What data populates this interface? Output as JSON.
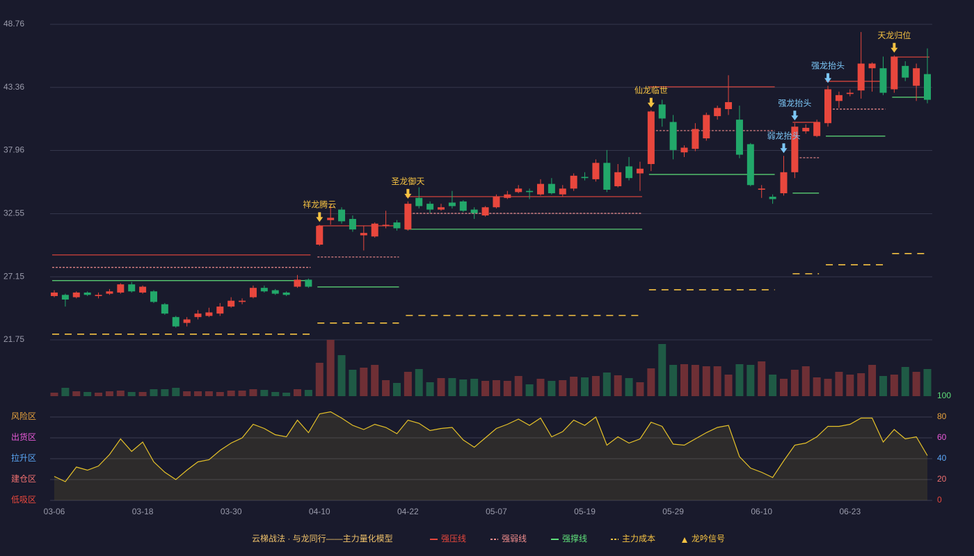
{
  "chart_data": {
    "type": "candlestick",
    "categories": [
      "03-06",
      null,
      null,
      null,
      null,
      null,
      null,
      null,
      "03-18",
      null,
      null,
      null,
      null,
      null,
      null,
      null,
      "03-30",
      null,
      null,
      null,
      null,
      null,
      null,
      null,
      "04-10",
      null,
      null,
      null,
      null,
      null,
      null,
      null,
      "04-22",
      null,
      null,
      null,
      null,
      null,
      null,
      null,
      "05-07",
      null,
      null,
      null,
      null,
      null,
      null,
      null,
      "05-19",
      null,
      null,
      null,
      null,
      null,
      null,
      null,
      "05-29",
      null,
      null,
      null,
      null,
      null,
      null,
      null,
      "06-10",
      null,
      null,
      null,
      null,
      null,
      null,
      null,
      "06-23",
      null,
      null,
      null,
      null,
      null,
      null,
      null
    ],
    "open": [
      25.5,
      25.6,
      25.4,
      25.8,
      25.5,
      25.7,
      25.8,
      26.5,
      25.8,
      25.9,
      24.8,
      23.7,
      23.2,
      23.7,
      23.8,
      24.0,
      24.6,
      25.0,
      25.4,
      26.2,
      26.0,
      25.8,
      26.3,
      26.9,
      29.9,
      32.0,
      32.9,
      32.1,
      30.7,
      30.6,
      31.5,
      31.8,
      31.2,
      33.9,
      33.4,
      32.9,
      33.5,
      33.6,
      32.9,
      32.4,
      33.1,
      33.9,
      34.4,
      34.5,
      34.2,
      35.1,
      34.2,
      34.7,
      35.7,
      35.5,
      36.9,
      34.9,
      36.6,
      36.0,
      36.8,
      41.9,
      40.4,
      37.8,
      38.1,
      39.0,
      40.9,
      41.5,
      40.6,
      38.5,
      34.6,
      34.0,
      34.3,
      36.1,
      39.6,
      39.2,
      40.3,
      42.2,
      42.8,
      43.1,
      45.0,
      45.0,
      43.2,
      45.2,
      43.5,
      44.5
    ],
    "close": [
      25.8,
      25.2,
      25.8,
      25.6,
      25.6,
      25.9,
      26.5,
      25.9,
      26.3,
      25.0,
      24.0,
      22.9,
      23.5,
      24.0,
      24.1,
      24.6,
      25.1,
      25.1,
      26.2,
      25.9,
      25.7,
      25.6,
      26.9,
      26.3,
      31.5,
      32.2,
      31.9,
      31.2,
      30.9,
      31.7,
      31.6,
      31.3,
      33.4,
      33.2,
      32.9,
      33.1,
      33.2,
      32.8,
      32.6,
      33.1,
      34.0,
      34.2,
      34.7,
      34.4,
      35.1,
      34.3,
      34.7,
      35.8,
      35.6,
      36.9,
      34.6,
      36.1,
      35.6,
      36.4,
      41.3,
      40.7,
      38.0,
      38.2,
      39.8,
      41.0,
      41.6,
      42.1,
      37.6,
      35.0,
      34.7,
      33.8,
      36.1,
      40.0,
      39.9,
      40.4,
      43.2,
      42.7,
      42.9,
      45.4,
      45.4,
      42.9,
      46.0,
      44.2,
      45.0,
      42.3
    ],
    "high": [
      26.0,
      25.7,
      25.9,
      25.9,
      25.8,
      26.1,
      26.6,
      26.7,
      26.4,
      26.0,
      24.9,
      23.8,
      23.7,
      24.3,
      24.5,
      24.9,
      25.4,
      25.3,
      26.4,
      26.4,
      26.1,
      25.9,
      27.3,
      27.0,
      31.6,
      33.2,
      33.1,
      32.4,
      31.5,
      31.8,
      32.8,
      32.0,
      33.6,
      34.8,
      33.6,
      33.4,
      34.5,
      33.7,
      33.1,
      33.2,
      34.2,
      34.5,
      35.0,
      34.7,
      35.5,
      35.6,
      35.0,
      36.0,
      36.1,
      37.2,
      38.0,
      36.8,
      37.4,
      37.0,
      41.4,
      42.3,
      41.0,
      38.4,
      40.3,
      41.2,
      41.8,
      44.4,
      41.8,
      38.6,
      35.0,
      34.2,
      37.5,
      40.3,
      40.2,
      40.6,
      43.5,
      43.0,
      43.2,
      48.1,
      45.5,
      46.0,
      46.1,
      45.6,
      45.4,
      46.7
    ],
    "low": [
      25.4,
      24.6,
      25.3,
      25.5,
      25.3,
      25.6,
      25.7,
      25.8,
      25.7,
      24.9,
      23.9,
      22.8,
      22.9,
      23.5,
      23.7,
      23.8,
      24.5,
      24.8,
      25.3,
      25.8,
      25.6,
      25.5,
      26.2,
      26.2,
      29.8,
      31.6,
      31.7,
      31.0,
      29.4,
      30.5,
      31.3,
      31.1,
      31.1,
      33.0,
      32.6,
      32.8,
      33.0,
      32.7,
      32.1,
      32.3,
      33.0,
      33.8,
      34.3,
      33.8,
      34.1,
      34.2,
      34.0,
      34.5,
      35.4,
      35.3,
      34.4,
      34.8,
      35.4,
      34.5,
      36.2,
      40.0,
      37.2,
      37.4,
      37.9,
      38.8,
      40.6,
      41.0,
      37.3,
      34.9,
      33.9,
      33.4,
      34.1,
      35.6,
      39.4,
      39.1,
      40.0,
      41.6,
      42.6,
      42.4,
      43.0,
      42.7,
      42.9,
      43.9,
      42.2,
      42.0
    ],
    "up_color": "#e8473d",
    "down_color": "#22a86a",
    "ylim": [
      21.75,
      48.76
    ],
    "yticks": [
      21.75,
      27.15,
      32.55,
      37.96,
      43.36,
      48.76
    ],
    "grid": true,
    "levels": [
      {
        "start": 0,
        "end": 23,
        "pressure": 29.02,
        "weak": 27.95,
        "support": 26.82,
        "cost": 22.24
      },
      {
        "start": 24,
        "end": 31,
        "pressure": 31.51,
        "weak": 28.84,
        "support": 26.28,
        "cost": 23.19
      },
      {
        "start": 32,
        "end": 53,
        "pressure": 34.01,
        "weak": 32.58,
        "support": 31.22,
        "cost": 23.84
      },
      {
        "start": 54,
        "end": 65,
        "pressure": 43.41,
        "weak": 39.66,
        "support": 35.91,
        "cost": 26.04
      },
      {
        "start": 67,
        "end": 69,
        "pressure": 40.37,
        "weak": 37.34,
        "support": 34.31,
        "cost": 27.41
      },
      {
        "start": 70,
        "end": 75,
        "pressure": 43.88,
        "weak": 41.5,
        "support": 39.19,
        "cost": 28.18
      },
      {
        "start": 76,
        "end": 79,
        "pressure": 45.96,
        "support": 42.52,
        "cost": 29.14
      }
    ],
    "signals": [
      {
        "index": 24,
        "label": "祥龙腾云",
        "color": "#f5c242"
      },
      {
        "index": 32,
        "label": "圣龙御天",
        "color": "#f5c242"
      },
      {
        "index": 54,
        "label": "仙龙临世",
        "color": "#f5c242"
      },
      {
        "index": 66,
        "label": "弱龙抬头",
        "color": "#7cc7f7"
      },
      {
        "index": 67,
        "label": "强龙抬头",
        "color": "#7cc7f7"
      },
      {
        "index": 70,
        "label": "强龙抬头",
        "color": "#7cc7f7"
      },
      {
        "index": 76,
        "label": "天龙归位",
        "color": "#f5c242"
      }
    ],
    "volume": {
      "values": [
        5,
        12,
        7,
        6,
        5,
        7,
        8,
        6,
        6,
        10,
        10,
        12,
        7,
        7,
        7,
        6,
        8,
        8,
        10,
        9,
        6,
        5,
        10,
        9,
        48,
        81,
        59,
        38,
        41,
        45,
        23,
        19,
        35,
        39,
        20,
        26,
        26,
        24,
        25,
        22,
        23,
        22,
        29,
        17,
        25,
        22,
        23,
        28,
        27,
        29,
        34,
        30,
        26,
        20,
        40,
        75,
        45,
        46,
        45,
        43,
        43,
        31,
        46,
        45,
        50,
        31,
        25,
        38,
        43,
        27,
        25,
        35,
        31,
        33,
        45,
        29,
        31,
        42,
        35,
        39
      ],
      "up_color": "#6e2f35",
      "down_color": "#1f5a45"
    },
    "indicator": {
      "values": [
        23,
        18,
        32,
        29,
        33,
        44,
        59,
        47,
        56,
        37,
        27,
        20,
        29,
        37,
        39,
        48,
        55,
        60,
        73,
        69,
        63,
        61,
        77,
        65,
        83,
        85,
        79,
        72,
        68,
        73,
        70,
        64,
        77,
        74,
        67,
        69,
        70,
        58,
        51,
        60,
        69,
        73,
        78,
        72,
        79,
        61,
        66,
        77,
        72,
        80,
        53,
        61,
        55,
        59,
        75,
        71,
        54,
        53,
        59,
        65,
        70,
        72,
        42,
        31,
        27,
        22,
        38,
        53,
        55,
        61,
        71,
        71,
        73,
        79,
        79,
        56,
        68,
        59,
        61,
        43
      ],
      "color": "#e6c229",
      "ylim": [
        0,
        100
      ],
      "yticks": [
        0,
        20,
        40,
        60,
        80,
        100
      ],
      "ytick_colors": [
        "#e8473d",
        "#ee6f6f",
        "#5aa6f5",
        "#e85ad8",
        "#e8a33d",
        "#5fe07a"
      ],
      "zones": [
        {
          "value": 80,
          "label": "风险区",
          "color": "#e8a33d"
        },
        {
          "value": 60,
          "label": "出货区",
          "color": "#e85ad8"
        },
        {
          "value": 40,
          "label": "拉升区",
          "color": "#5aa6f5"
        },
        {
          "value": 20,
          "label": "建仓区",
          "color": "#ee6f6f"
        },
        {
          "value": 0,
          "label": "低吸区",
          "color": "#e8473d"
        }
      ]
    },
    "legend": {
      "title": "云梯战法 · 与龙同行——主力量化模型",
      "title_color": "#f0c26a",
      "items": [
        {
          "name": "强压线",
          "color": "#e8473d",
          "style": "solid"
        },
        {
          "name": "强弱线",
          "color": "#f08c8c",
          "style": "dashed"
        },
        {
          "name": "强撑线",
          "color": "#5fe07a",
          "style": "solid"
        },
        {
          "name": "主力成本",
          "color": "#f5c242",
          "style": "dashed"
        },
        {
          "name": "龙吟信号",
          "color": "#f5c242",
          "style": "triangle"
        }
      ]
    }
  }
}
